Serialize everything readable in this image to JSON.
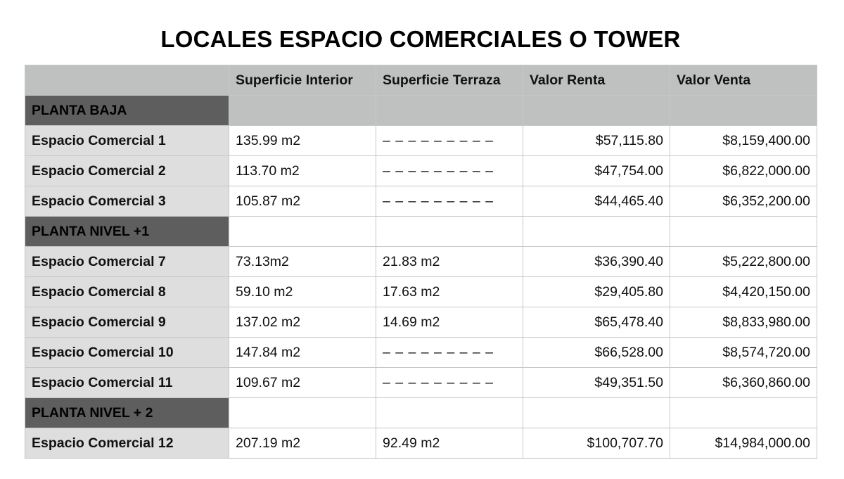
{
  "title": "LOCALES ESPACIO COMERCIALES O TOWER",
  "table": {
    "headers": [
      "",
      "Superficie Interior",
      "Superficie Terraza",
      "Valor Renta",
      "Valor Venta"
    ],
    "sections": [
      {
        "name": "PLANTA BAJA",
        "rows": [
          {
            "label": "Espacio Comercial 1",
            "interior": "135.99 m2",
            "terraza": "– – – – – – – – –",
            "renta": "$57,115.80",
            "venta": "$8,159,400.00"
          },
          {
            "label": "Espacio Comercial 2",
            "interior": "113.70 m2",
            "terraza": "– – – – – – – – –",
            "renta": "$47,754.00",
            "venta": "$6,822,000.00"
          },
          {
            "label": "Espacio Comercial 3",
            "interior": "105.87 m2",
            "terraza": "– – – – – – – – –",
            "renta": "$44,465.40",
            "venta": "$6,352,200.00"
          }
        ]
      },
      {
        "name": "PLANTA NIVEL +1",
        "rows": [
          {
            "label": "Espacio Comercial 7",
            "interior": "73.13m2",
            "terraza": "21.83 m2",
            "renta": "$36,390.40",
            "venta": "$5,222,800.00"
          },
          {
            "label": "Espacio Comercial 8",
            "interior": "59.10 m2",
            "terraza": "17.63 m2",
            "renta": "$29,405.80",
            "venta": "$4,420,150.00"
          },
          {
            "label": "Espacio Comercial 9",
            "interior": "137.02 m2",
            "terraza": "14.69 m2",
            "renta": "$65,478.40",
            "venta": "$8,833,980.00"
          },
          {
            "label": "Espacio Comercial 10",
            "interior": "147.84 m2",
            "terraza": "– – – – – – – – –",
            "renta": "$66,528.00",
            "venta": "$8,574,720.00"
          },
          {
            "label": "Espacio Comercial 11",
            "interior": "109.67 m2",
            "terraza": "– – – – – – – – –",
            "renta": "$49,351.50",
            "venta": "$6,360,860.00"
          }
        ]
      },
      {
        "name": "PLANTA NIVEL + 2",
        "rows": [
          {
            "label": "Espacio Comercial 12",
            "interior": "207.19 m2",
            "terraza": "92.49 m2",
            "renta": "$100,707.70",
            "venta": "$14,984,000.00"
          }
        ]
      }
    ]
  },
  "colors": {
    "header_bg": "#bfc1c1",
    "section_bg": "#5e5e5e",
    "label_bg": "#dedede",
    "border": "#c7c7c7"
  }
}
